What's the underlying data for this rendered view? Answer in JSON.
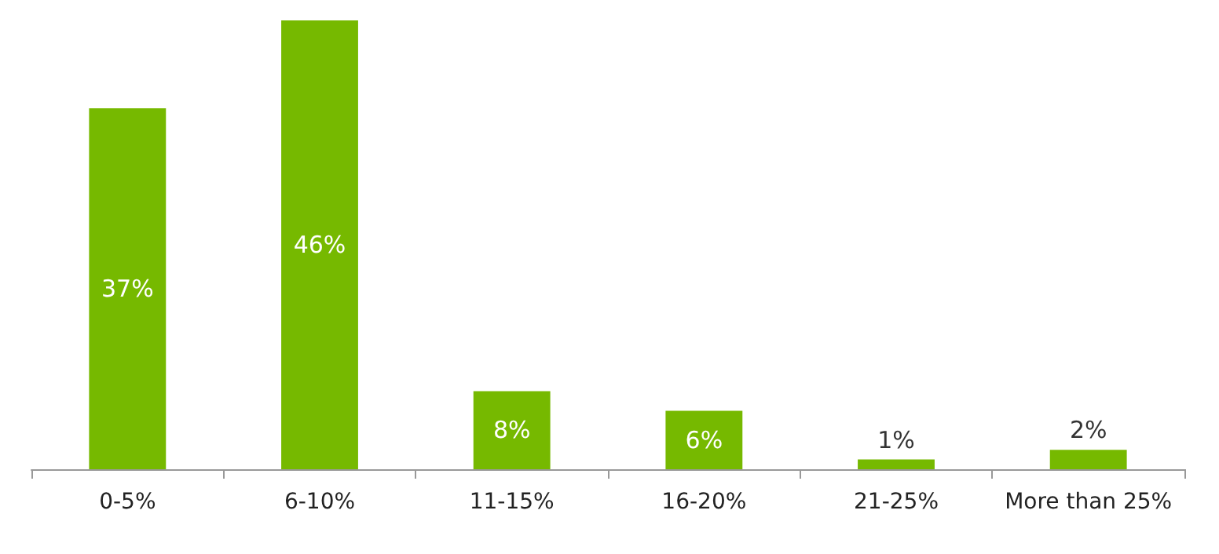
{
  "chart_data": {
    "type": "bar",
    "categories": [
      "0-5%",
      "6-10%",
      "11-15%",
      "16-20%",
      "21-25%",
      "More than 25%"
    ],
    "values": [
      37,
      46,
      8,
      6,
      1,
      2
    ],
    "value_labels": [
      "37%",
      "46%",
      "8%",
      "6%",
      "1%",
      "2%"
    ],
    "color": "#76b900"
  }
}
